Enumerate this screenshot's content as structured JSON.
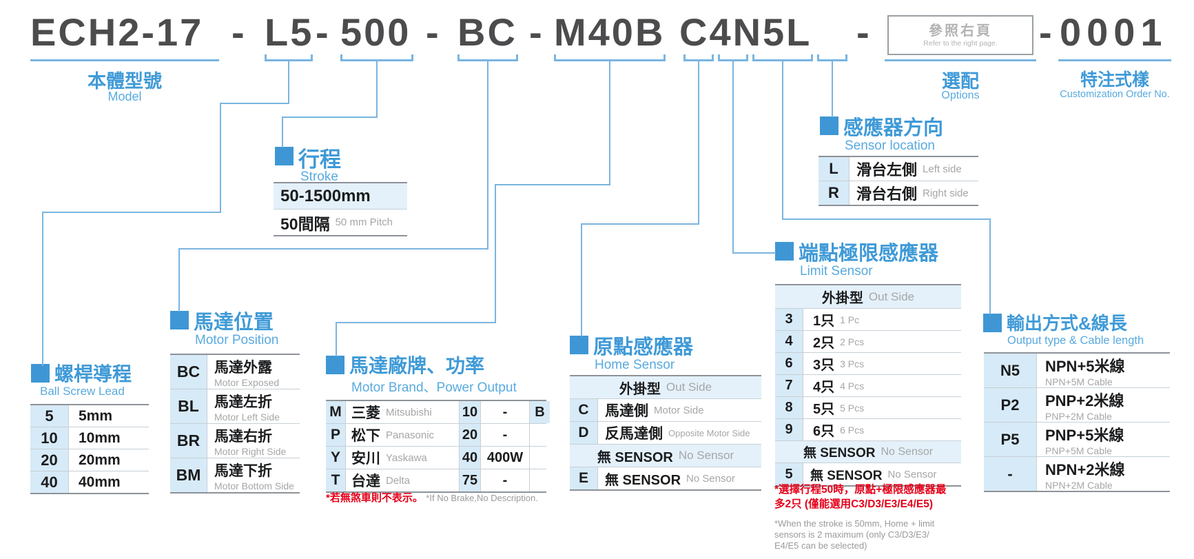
{
  "model": {
    "dash": "-",
    "segments": {
      "body": "ECH2-17",
      "lead": "L5",
      "stroke": "500",
      "position": "BC",
      "motor": "M40B",
      "sensors": "C4N5L",
      "custom": "0001"
    },
    "options_box": {
      "zh": "參照右頁",
      "en": "Refer to the right page."
    },
    "labels": {
      "body_zh": "本體型號",
      "body_en": "Model",
      "options_zh": "選配",
      "options_en": "Options",
      "custom_zh": "特注式樣",
      "custom_en": "Customization Order No."
    }
  },
  "sections": {
    "stroke": {
      "title_zh": "行程",
      "title_en": "Stroke",
      "rows": [
        {
          "main": "50-1500mm",
          "sub": ""
        },
        {
          "main": "50間隔",
          "sub": "50 mm Pitch"
        }
      ]
    },
    "motor_position": {
      "title_zh": "馬達位置",
      "title_en": "Motor Position",
      "rows": [
        {
          "code": "BC",
          "zh": "馬達外露",
          "en": "Motor Exposed"
        },
        {
          "code": "BL",
          "zh": "馬達左折",
          "en": "Motor Left Side"
        },
        {
          "code": "BR",
          "zh": "馬達右折",
          "en": "Motor Right Side"
        },
        {
          "code": "BM",
          "zh": "馬達下折",
          "en": "Motor Bottom Side"
        }
      ]
    },
    "ball_screw_lead": {
      "title_zh": "螺桿導程",
      "title_en": "Ball Screw Lead",
      "rows": [
        {
          "code": "5",
          "value": "5mm"
        },
        {
          "code": "10",
          "value": "10mm"
        },
        {
          "code": "20",
          "value": "20mm"
        },
        {
          "code": "40",
          "value": "40mm"
        }
      ]
    },
    "motor_brand": {
      "title_zh": "馬達廠牌、功率",
      "title_en": "Motor Brand、Power Output",
      "rows": [
        {
          "code": "M",
          "zh": "三菱",
          "en": "Mitsubishi",
          "power": "10",
          "watt": "-",
          "brake": "B"
        },
        {
          "code": "P",
          "zh": "松下",
          "en": "Panasonic",
          "power": "20",
          "watt": "-",
          "brake": ""
        },
        {
          "code": "Y",
          "zh": "安川",
          "en": "Yaskawa",
          "power": "40",
          "watt": "400W",
          "brake": ""
        },
        {
          "code": "T",
          "zh": "台達",
          "en": "Delta",
          "power": "75",
          "watt": "-",
          "brake": ""
        }
      ],
      "footnote_zh": "*若無煞車則不表示。",
      "footnote_en": "*If No Brake,No Description."
    },
    "home_sensor": {
      "title_zh": "原點感應器",
      "title_en": "Home Sensor",
      "header1_zh": "外掛型",
      "header1_en": "Out Side",
      "rows": [
        {
          "code": "C",
          "zh": "馬達側",
          "en": "Motor Side"
        },
        {
          "code": "D",
          "zh": "反馬達側",
          "en": "Opposite Motor Side"
        }
      ],
      "header2_zh": "無 SENSOR",
      "header2_en": "No Sensor",
      "row_e": {
        "code": "E",
        "zh": "無 SENSOR",
        "en": "No Sensor"
      }
    },
    "sensor_location": {
      "title_zh": "感應器方向",
      "title_en": "Sensor location",
      "rows": [
        {
          "code": "L",
          "zh": "滑台左側",
          "en": "Left side"
        },
        {
          "code": "R",
          "zh": "滑台右側",
          "en": "Right side"
        }
      ]
    },
    "limit_sensor": {
      "title_zh": "端點極限感應器",
      "title_en": "Limit Sensor",
      "header1_zh": "外掛型",
      "header1_en": "Out Side",
      "rows": [
        {
          "code": "3",
          "zh": "1只",
          "en": "1 Pc"
        },
        {
          "code": "4",
          "zh": "2只",
          "en": "2 Pcs"
        },
        {
          "code": "6",
          "zh": "3只",
          "en": "3 Pcs"
        },
        {
          "code": "7",
          "zh": "4只",
          "en": "4 Pcs"
        },
        {
          "code": "8",
          "zh": "5只",
          "en": "5 Pcs"
        },
        {
          "code": "9",
          "zh": "6只",
          "en": "6 Pcs"
        }
      ],
      "header2_zh": "無 SENSOR",
      "header2_en": "No Sensor",
      "row_5": {
        "code": "5",
        "zh": "無 SENSOR",
        "en": "No Sensor"
      },
      "footnote_zh": "*選擇行程50時，原點+極限感應器最\n多2只 (僅能選用C3/D3/E3/E4/E5)",
      "footnote_en": "*When the stroke is 50mm, Home + limit\nsensors is 2 maximum (only C3/D3/E3/\nE4/E5 can be selected)"
    },
    "output": {
      "title_zh": "輸出方式&線長",
      "title_en": "Output type & Cable length",
      "rows": [
        {
          "code": "N5",
          "zh": "NPN+5米線",
          "en": "NPN+5M Cable"
        },
        {
          "code": "P2",
          "zh": "PNP+2米線",
          "en": "PNP+2M Cable"
        },
        {
          "code": "P5",
          "zh": "PNP+5米線",
          "en": "PNP+5M Cable"
        },
        {
          "code": "-",
          "zh": "NPN+2米線",
          "en": "NPN+2M Cable"
        }
      ]
    }
  },
  "colors": {
    "accent_blue": "#3e97d4",
    "line_blue": "#79b5e0",
    "title_blue": "#3f9ad7",
    "subtitle_blue": "#58aadf",
    "band_blue": "#e4f1fa",
    "code_blue": "#d7eaf7",
    "model_gray": "#4c4c4e",
    "english_gray": "#a6a6a6",
    "footnote_red": "#e50019"
  }
}
